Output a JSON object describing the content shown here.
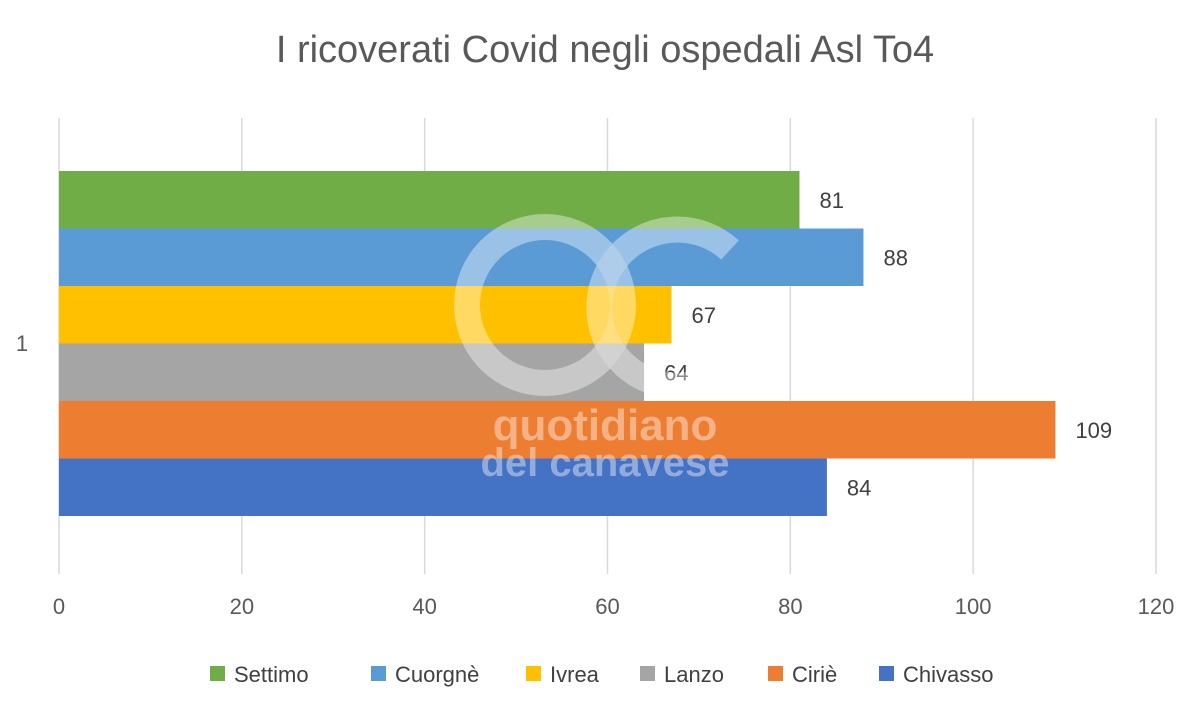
{
  "chart_data": {
    "type": "bar",
    "orientation": "horizontal",
    "title": "I ricoverati Covid negli ospedali Asl To4",
    "categories": [
      "1"
    ],
    "series": [
      {
        "name": "Settimo",
        "values": [
          81
        ],
        "color": "#70ad47"
      },
      {
        "name": "Cuorgnè",
        "values": [
          88
        ],
        "color": "#5b9bd5"
      },
      {
        "name": "Ivrea",
        "values": [
          67
        ],
        "color": "#ffc000"
      },
      {
        "name": "Lanzo",
        "values": [
          64
        ],
        "color": "#a5a5a5"
      },
      {
        "name": "Ciriè",
        "values": [
          109
        ],
        "color": "#ed7d31"
      },
      {
        "name": "Chivasso",
        "values": [
          84
        ],
        "color": "#4472c4"
      }
    ],
    "xlim": [
      0,
      120
    ],
    "xticks": [
      "0",
      "20",
      "40",
      "60",
      "80",
      "100",
      "120"
    ],
    "xlabel": "",
    "ylabel": "",
    "grid": true,
    "legend_position": "bottom",
    "data_labels": true
  },
  "watermark": {
    "logo_text": "QC",
    "line1": "quotidiano",
    "line2": "del canavese"
  }
}
